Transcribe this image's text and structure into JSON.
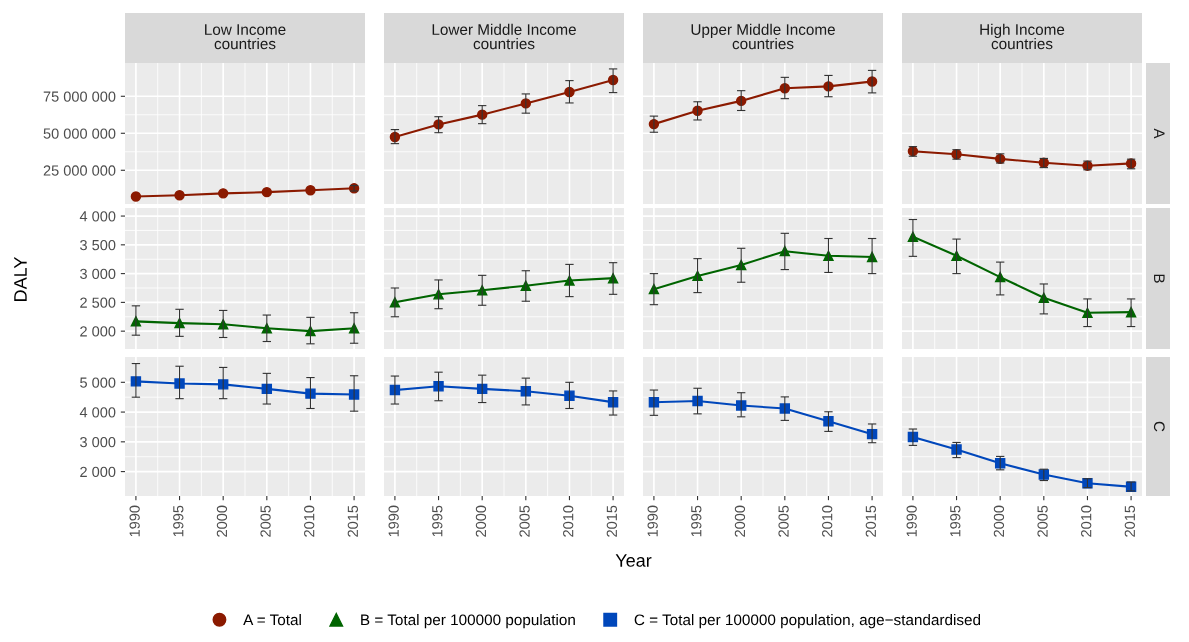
{
  "chart_data": [
    {
      "type": "line",
      "title": "Low Income\ncountries",
      "x": [
        1990,
        1995,
        2000,
        2005,
        2010,
        2015
      ],
      "xlim": [
        1988.75,
        2016.25
      ],
      "xticks": [
        1990,
        1995,
        2000,
        2005,
        2010,
        2015
      ],
      "ylim": [
        2200000,
        97500000
      ],
      "yticks": [
        {
          "value": 25000000,
          "label": "25 000 000"
        },
        {
          "value": 50000000,
          "label": "50 000 000"
        },
        {
          "value": 75000000,
          "label": "75 000 000"
        }
      ],
      "tick_labels": "y",
      "grid": true,
      "marker": "circle",
      "legend": "bottom",
      "series": [
        {
          "name": "A = Total",
          "color": "#8b1a00",
          "values": [
            7300000,
            8100000,
            9400000,
            10200000,
            11500000,
            12800000
          ],
          "errors": [
            null,
            null,
            null,
            null,
            null,
            [
              11000000,
              14700000
            ]
          ]
        }
      ]
    },
    {
      "type": "line",
      "title": "Lower Middle Income\ncountries",
      "x": [
        1990,
        1995,
        2000,
        2005,
        2010,
        2015
      ],
      "xlim": [
        1988.75,
        2016.25
      ],
      "xticks": [
        1990,
        1995,
        2000,
        2005,
        2010,
        2015
      ],
      "ylim": [
        2200000,
        97500000
      ],
      "yticks": [
        25000000,
        50000000,
        75000000
      ],
      "tick_labels": false,
      "grid": true,
      "marker": "circle",
      "series": [
        {
          "color": "#8b1a00",
          "values": [
            47500000,
            56000000,
            62600000,
            70200000,
            77900000,
            86000000
          ],
          "errors": [
            [
              43000000,
              52500000
            ],
            [
              50400000,
              61200000
            ],
            [
              56500000,
              68700000
            ],
            [
              63600000,
              76600000
            ],
            [
              70500000,
              85600000
            ],
            [
              77500000,
              93500000
            ]
          ]
        }
      ]
    },
    {
      "type": "line",
      "title": "Upper Middle Income\ncountries",
      "x": [
        1990,
        1995,
        2000,
        2005,
        2010,
        2015
      ],
      "xlim": [
        1988.75,
        2016.25
      ],
      "xticks": [
        1990,
        1995,
        2000,
        2005,
        2010,
        2015
      ],
      "ylim": [
        2200000,
        97500000
      ],
      "yticks": [
        25000000,
        50000000,
        75000000
      ],
      "tick_labels": false,
      "grid": true,
      "marker": "circle",
      "series": [
        {
          "color": "#8b1a00",
          "values": [
            56200000,
            65200000,
            71900000,
            80400000,
            81700000,
            85000000
          ],
          "errors": [
            [
              50700000,
              61600000
            ],
            [
              59000000,
              71300000
            ],
            [
              65400000,
              78800000
            ],
            [
              73400000,
              87800000
            ],
            [
              74700000,
              89100000
            ],
            [
              77300000,
              92500000
            ]
          ]
        }
      ]
    },
    {
      "type": "line",
      "title": "High Income\ncountries",
      "y2label": "A",
      "x": [
        1990,
        1995,
        2000,
        2005,
        2010,
        2015
      ],
      "xlim": [
        1988.75,
        2016.25
      ],
      "xticks": [
        1990,
        1995,
        2000,
        2005,
        2010,
        2015
      ],
      "ylim": [
        2200000,
        97500000
      ],
      "yticks": [
        25000000,
        50000000,
        75000000
      ],
      "tick_labels": false,
      "grid": true,
      "marker": "circle",
      "series": [
        {
          "color": "#8b1a00",
          "values": [
            37900000,
            35800000,
            32700000,
            30100000,
            28100000,
            29600000
          ],
          "errors": [
            [
              34500000,
              41000000
            ],
            [
              32500000,
              38900000
            ],
            [
              29900000,
              36100000
            ],
            [
              26800000,
              33000000
            ],
            [
              25300000,
              31200000
            ],
            [
              26000000,
              32500000
            ]
          ]
        }
      ]
    },
    {
      "type": "line",
      "ylabel": "DALY",
      "x": [
        1990,
        1995,
        2000,
        2005,
        2010,
        2015
      ],
      "xlim": [
        1988.75,
        2016.25
      ],
      "xticks": [
        1990,
        1995,
        2000,
        2005,
        2010,
        2015
      ],
      "ylim": [
        1690,
        4140
      ],
      "yticks": [
        {
          "value": 2000,
          "label": "2 000"
        },
        {
          "value": 2500,
          "label": "2 500"
        },
        {
          "value": 3000,
          "label": "3 000"
        },
        {
          "value": 3500,
          "label": "3 500"
        },
        {
          "value": 4000,
          "label": "4 000"
        }
      ],
      "tick_labels": "y",
      "grid": true,
      "marker": "triangle",
      "legend": "bottom",
      "series": [
        {
          "name": "B = Total per 100000 population",
          "color": "#006400",
          "values": [
            2170,
            2140,
            2120,
            2050,
            2000,
            2050
          ],
          "errors": [
            [
              1930,
              2440
            ],
            [
              1910,
              2380
            ],
            [
              1890,
              2360
            ],
            [
              1820,
              2280
            ],
            [
              1780,
              2240
            ],
            [
              1790,
              2320
            ]
          ]
        }
      ]
    },
    {
      "type": "line",
      "x": [
        1990,
        1995,
        2000,
        2005,
        2010,
        2015
      ],
      "xlim": [
        1988.75,
        2016.25
      ],
      "xticks": [
        1990,
        1995,
        2000,
        2005,
        2010,
        2015
      ],
      "ylim": [
        1690,
        4140
      ],
      "yticks": [
        2000,
        2500,
        3000,
        3500,
        4000
      ],
      "tick_labels": false,
      "grid": true,
      "marker": "triangle",
      "series": [
        {
          "color": "#006400",
          "values": [
            2500,
            2640,
            2710,
            2790,
            2880,
            2920
          ],
          "errors": [
            [
              2250,
              2750
            ],
            [
              2390,
              2890
            ],
            [
              2450,
              2970
            ],
            [
              2520,
              3050
            ],
            [
              2600,
              3160
            ],
            [
              2640,
              3190
            ]
          ]
        }
      ]
    },
    {
      "type": "line",
      "x": [
        1990,
        1995,
        2000,
        2005,
        2010,
        2015
      ],
      "xlim": [
        1988.75,
        2016.25
      ],
      "xticks": [
        1990,
        1995,
        2000,
        2005,
        2010,
        2015
      ],
      "ylim": [
        1690,
        4140
      ],
      "yticks": [
        2000,
        2500,
        3000,
        3500,
        4000
      ],
      "tick_labels": false,
      "grid": true,
      "marker": "triangle",
      "series": [
        {
          "color": "#006400",
          "values": [
            2730,
            2960,
            3150,
            3390,
            3310,
            3290
          ],
          "errors": [
            [
              2460,
              3000
            ],
            [
              2670,
              3260
            ],
            [
              2850,
              3440
            ],
            [
              3070,
              3700
            ],
            [
              3020,
              3610
            ],
            [
              3000,
              3610
            ]
          ]
        }
      ]
    },
    {
      "type": "line",
      "y2label": "B",
      "x": [
        1990,
        1995,
        2000,
        2005,
        2010,
        2015
      ],
      "xlim": [
        1988.75,
        2016.25
      ],
      "xticks": [
        1990,
        1995,
        2000,
        2005,
        2010,
        2015
      ],
      "ylim": [
        1690,
        4140
      ],
      "yticks": [
        2000,
        2500,
        3000,
        3500,
        4000
      ],
      "tick_labels": false,
      "grid": true,
      "marker": "triangle",
      "series": [
        {
          "color": "#006400",
          "values": [
            3640,
            3310,
            2940,
            2580,
            2320,
            2330
          ],
          "errors": [
            [
              3300,
              3940
            ],
            [
              3000,
              3600
            ],
            [
              2630,
              3200
            ],
            [
              2300,
              2820
            ],
            [
              2080,
              2560
            ],
            [
              2080,
              2560
            ]
          ]
        }
      ]
    },
    {
      "type": "line",
      "x": [
        1990,
        1995,
        2000,
        2005,
        2010,
        2015
      ],
      "xlim": [
        1988.75,
        2016.25
      ],
      "xticks": [
        1990,
        1995,
        2000,
        2005,
        2010,
        2015
      ],
      "ylim": [
        1180,
        5850
      ],
      "yticks": [
        {
          "value": 2000,
          "label": "2 000"
        },
        {
          "value": 3000,
          "label": "3 000"
        },
        {
          "value": 4000,
          "label": "4 000"
        },
        {
          "value": 5000,
          "label": "5 000"
        }
      ],
      "grid": true,
      "marker": "square",
      "legend": "bottom",
      "series": [
        {
          "name": "C = Total per 100000 population, age−standardised",
          "color": "#0047bb",
          "values": [
            5030,
            4960,
            4930,
            4780,
            4620,
            4590
          ],
          "errors": [
            [
              4500,
              5630
            ],
            [
              4450,
              5540
            ],
            [
              4450,
              5500
            ],
            [
              4270,
              5300
            ],
            [
              4120,
              5160
            ],
            [
              4030,
              5220
            ]
          ]
        }
      ]
    },
    {
      "type": "line",
      "xlabel": "Year",
      "x": [
        1990,
        1995,
        2000,
        2005,
        2010,
        2015
      ],
      "xlim": [
        1988.75,
        2016.25
      ],
      "xticks": [
        1990,
        1995,
        2000,
        2005,
        2010,
        2015
      ],
      "ylim": [
        1180,
        5850
      ],
      "yticks": [
        2000,
        3000,
        4000,
        5000
      ],
      "tick_labels": "x",
      "grid": true,
      "marker": "square",
      "series": [
        {
          "color": "#0047bb",
          "values": [
            4740,
            4870,
            4780,
            4700,
            4550,
            4330
          ],
          "errors": [
            [
              4270,
              5210
            ],
            [
              4380,
              5340
            ],
            [
              4320,
              5240
            ],
            [
              4240,
              5140
            ],
            [
              4120,
              5000
            ],
            [
              3900,
              4710
            ]
          ]
        }
      ]
    },
    {
      "type": "line",
      "x": [
        1990,
        1995,
        2000,
        2005,
        2010,
        2015
      ],
      "xlim": [
        1988.75,
        2016.25
      ],
      "xticks": [
        1990,
        1995,
        2000,
        2005,
        2010,
        2015
      ],
      "ylim": [
        1180,
        5850
      ],
      "yticks": [
        2000,
        3000,
        4000,
        5000
      ],
      "tick_labels": "x",
      "grid": true,
      "marker": "square",
      "series": [
        {
          "color": "#0047bb",
          "values": [
            4330,
            4370,
            4220,
            4120,
            3690,
            3260
          ],
          "errors": [
            [
              3890,
              4740
            ],
            [
              3940,
              4800
            ],
            [
              3840,
              4650
            ],
            [
              3720,
              4510
            ],
            [
              3350,
              4010
            ],
            [
              2970,
              3600
            ]
          ]
        }
      ]
    },
    {
      "type": "line",
      "y2label": "C",
      "x": [
        1990,
        1995,
        2000,
        2005,
        2010,
        2015
      ],
      "xlim": [
        1988.75,
        2016.25
      ],
      "xticks": [
        1990,
        1995,
        2000,
        2005,
        2010,
        2015
      ],
      "ylim": [
        1180,
        5850
      ],
      "yticks": [
        2000,
        3000,
        4000,
        5000
      ],
      "tick_labels": "x",
      "grid": true,
      "marker": "square",
      "series": [
        {
          "color": "#0047bb",
          "values": [
            3160,
            2740,
            2280,
            1900,
            1610,
            1490
          ],
          "errors": [
            [
              2880,
              3430
            ],
            [
              2470,
              2980
            ],
            [
              2060,
              2510
            ],
            [
              1700,
              2080
            ],
            [
              1460,
              1760
            ],
            [
              1350,
              1650
            ]
          ]
        }
      ]
    }
  ]
}
